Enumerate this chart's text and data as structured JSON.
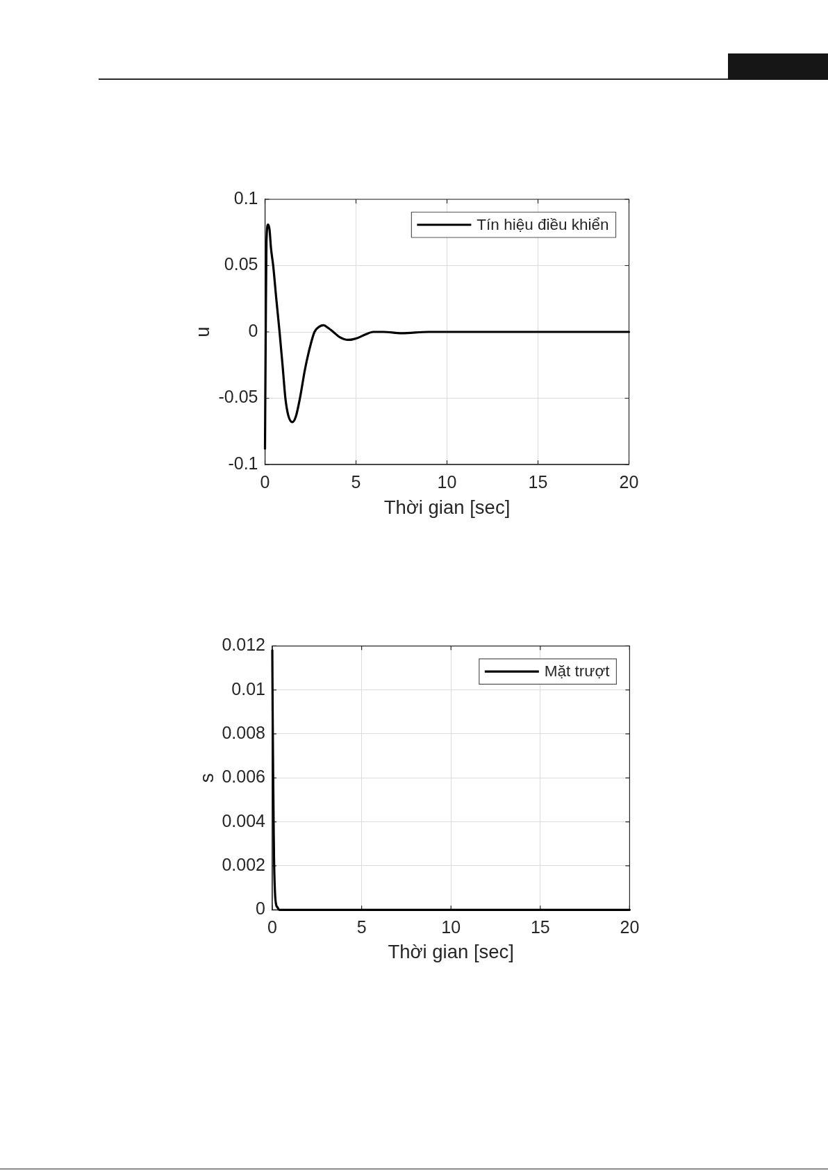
{
  "chart_data": [
    {
      "type": "line",
      "xlabel": "Thời gian [sec]",
      "ylabel": "u",
      "x": [
        0,
        0.04,
        0.08,
        0.17,
        0.25,
        0.33,
        0.45,
        0.62,
        0.8,
        0.97,
        1.12,
        1.28,
        1.5,
        1.69,
        1.92,
        2.2,
        2.48,
        2.72,
        2.99,
        3.22,
        3.47,
        3.75,
        4.11,
        4.56,
        5.0,
        5.51,
        5.95,
        6.5,
        7.5,
        9.0,
        10,
        15,
        20
      ],
      "series": [
        {
          "name": "Tín hiệu điều khiển",
          "color": "#000000",
          "values": [
            -0.088,
            0.0,
            0.068,
            0.081,
            0.077,
            0.063,
            0.05,
            0.025,
            0.0,
            -0.026,
            -0.05,
            -0.063,
            -0.068,
            -0.064,
            -0.05,
            -0.028,
            -0.011,
            0.0,
            0.004,
            0.005,
            0.003,
            0.0,
            -0.004,
            -0.006,
            -0.005,
            -0.002,
            0.0,
            0.0,
            -0.001,
            0.0,
            0.0,
            0.0,
            0.0
          ]
        }
      ],
      "xlim": [
        0,
        20
      ],
      "xticks": [
        0,
        5,
        10,
        15,
        20
      ],
      "ylim": [
        -0.1,
        0.1
      ],
      "yticks": [
        -0.1,
        -0.05,
        0,
        0.05,
        0.1
      ],
      "grid": true,
      "legend": "top right"
    },
    {
      "type": "line",
      "xlabel": "Thời gian [sec]",
      "ylabel": "s",
      "x": [
        0,
        0.02,
        0.05,
        0.08,
        0.1,
        0.15,
        0.2,
        0.3,
        0.4,
        20
      ],
      "series": [
        {
          "name": "Mặt trượt",
          "color": "#000000",
          "values": [
            0.0118,
            0.009,
            0.006,
            0.0035,
            0.0022,
            0.0008,
            0.0003,
            0.0001,
            0,
            0
          ]
        }
      ],
      "xlim": [
        0,
        20
      ],
      "xticks": [
        0,
        5,
        10,
        15,
        20
      ],
      "ylim": [
        0,
        0.012
      ],
      "yticks": [
        0,
        0.002,
        0.004,
        0.006,
        0.008,
        0.01,
        0.012
      ],
      "grid": true,
      "legend": "top right"
    }
  ]
}
